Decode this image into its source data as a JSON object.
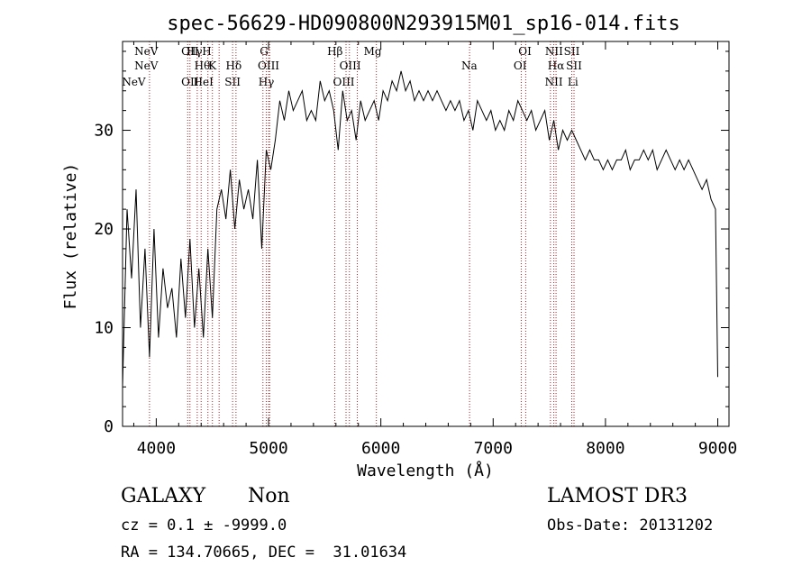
{
  "chart_data": {
    "type": "line",
    "title": "spec-56629-HD090800N293915M01_sp16-014.fits",
    "xlabel": "Wavelength (Å)",
    "ylabel": "Flux (relative)",
    "xlim": [
      3700,
      9100
    ],
    "ylim": [
      0,
      39
    ],
    "xticks": [
      4000,
      5000,
      6000,
      7000,
      8000,
      9000
    ],
    "yticks": [
      0,
      10,
      20,
      30
    ],
    "grid": false,
    "line_color": "#000000",
    "marker_color": "#b22222",
    "spectrum": {
      "x": [
        3700,
        3740,
        3780,
        3820,
        3860,
        3900,
        3940,
        3980,
        4020,
        4060,
        4100,
        4140,
        4180,
        4220,
        4260,
        4300,
        4340,
        4380,
        4420,
        4460,
        4500,
        4540,
        4580,
        4620,
        4660,
        4700,
        4740,
        4780,
        4820,
        4860,
        4900,
        4940,
        4980,
        5020,
        5060,
        5100,
        5140,
        5180,
        5220,
        5260,
        5300,
        5340,
        5380,
        5420,
        5460,
        5500,
        5540,
        5580,
        5620,
        5660,
        5700,
        5740,
        5780,
        5820,
        5860,
        5900,
        5940,
        5980,
        6020,
        6060,
        6100,
        6140,
        6180,
        6220,
        6260,
        6300,
        6340,
        6380,
        6420,
        6460,
        6500,
        6540,
        6580,
        6620,
        6660,
        6700,
        6740,
        6780,
        6820,
        6860,
        6900,
        6940,
        6980,
        7020,
        7060,
        7100,
        7140,
        7180,
        7220,
        7260,
        7300,
        7340,
        7380,
        7420,
        7460,
        7500,
        7540,
        7580,
        7620,
        7660,
        7700,
        7740,
        7780,
        7820,
        7860,
        7900,
        7940,
        7980,
        8020,
        8060,
        8100,
        8140,
        8180,
        8220,
        8260,
        8300,
        8340,
        8380,
        8420,
        8460,
        8500,
        8540,
        8580,
        8620,
        8660,
        8700,
        8740,
        8780,
        8820,
        8860,
        8900,
        8940,
        8980,
        9000
      ],
      "y": [
        4,
        22,
        15,
        24,
        10,
        18,
        7,
        20,
        9,
        16,
        12,
        14,
        9,
        17,
        11,
        19,
        10,
        16,
        9,
        18,
        11,
        22,
        24,
        21,
        26,
        20,
        25,
        22,
        24,
        21,
        27,
        18,
        28,
        26,
        29,
        33,
        31,
        34,
        32,
        33,
        34,
        31,
        32,
        31,
        35,
        33,
        34,
        32,
        28,
        34,
        31,
        32,
        29,
        33,
        31,
        32,
        33,
        31,
        34,
        33,
        35,
        34,
        36,
        34,
        35,
        33,
        34,
        33,
        34,
        33,
        34,
        33,
        32,
        33,
        32,
        33,
        31,
        32,
        30,
        33,
        32,
        31,
        32,
        30,
        31,
        30,
        32,
        31,
        33,
        32,
        31,
        32,
        30,
        31,
        32,
        29,
        31,
        28,
        30,
        29,
        30,
        29,
        28,
        27,
        28,
        27,
        27,
        26,
        27,
        26,
        27,
        27,
        28,
        26,
        27,
        27,
        28,
        27,
        28,
        26,
        27,
        28,
        27,
        26,
        27,
        26,
        27,
        26,
        25,
        24,
        25,
        23,
        22,
        5
      ]
    },
    "lines_top": [
      {
        "x": 3911,
        "label": "NeV"
      },
      {
        "x": 4300,
        "label": "OII"
      },
      {
        "x": 4340,
        "label": "Hγ"
      },
      {
        "x": 4450,
        "label": "H"
      },
      {
        "x": 4960,
        "label": "G"
      },
      {
        "x": 5592,
        "label": "Hβ"
      },
      {
        "x": 5927,
        "label": "Mg"
      },
      {
        "x": 7283,
        "label": "OI"
      },
      {
        "x": 7542,
        "label": "NII"
      },
      {
        "x": 7700,
        "label": "SII"
      }
    ],
    "lines_mid": [
      {
        "x": 3911,
        "label": "NeV"
      },
      {
        "x": 4410,
        "label": "Hθ"
      },
      {
        "x": 4500,
        "label": "K"
      },
      {
        "x": 4690,
        "label": "Hδ"
      },
      {
        "x": 5000,
        "label": "OIII"
      },
      {
        "x": 5727,
        "label": "OIII"
      },
      {
        "x": 6788,
        "label": "Na"
      },
      {
        "x": 7240,
        "label": "OI"
      },
      {
        "x": 7560,
        "label": "Hα"
      },
      {
        "x": 7720,
        "label": "SII"
      }
    ],
    "lines_bottom": [
      {
        "x": 3800,
        "label": "NeV"
      },
      {
        "x": 4300,
        "label": "OII"
      },
      {
        "x": 4420,
        "label": "HeI"
      },
      {
        "x": 4680,
        "label": "SII"
      },
      {
        "x": 4980,
        "label": "Hγ"
      },
      {
        "x": 5670,
        "label": "OIII"
      },
      {
        "x": 7540,
        "label": "NII"
      },
      {
        "x": 7710,
        "label": "Li"
      }
    ],
    "marker_positions": [
      3940,
      4280,
      4300,
      4365,
      4400,
      4460,
      4500,
      4560,
      4680,
      4710,
      4950,
      4980,
      5000,
      5010,
      5590,
      5690,
      5720,
      5790,
      5960,
      6790,
      7250,
      7290,
      7510,
      7540,
      7560,
      7700,
      7720
    ]
  },
  "info": {
    "class_label": "GALAXY",
    "subclass_label": "Non",
    "survey": "LAMOST DR3",
    "cz_text": "cz = 0.1 ± -9999.0",
    "obs_date": "Obs-Date: 20131202",
    "coords": "RA = 134.70665, DEC =  31.01634"
  }
}
